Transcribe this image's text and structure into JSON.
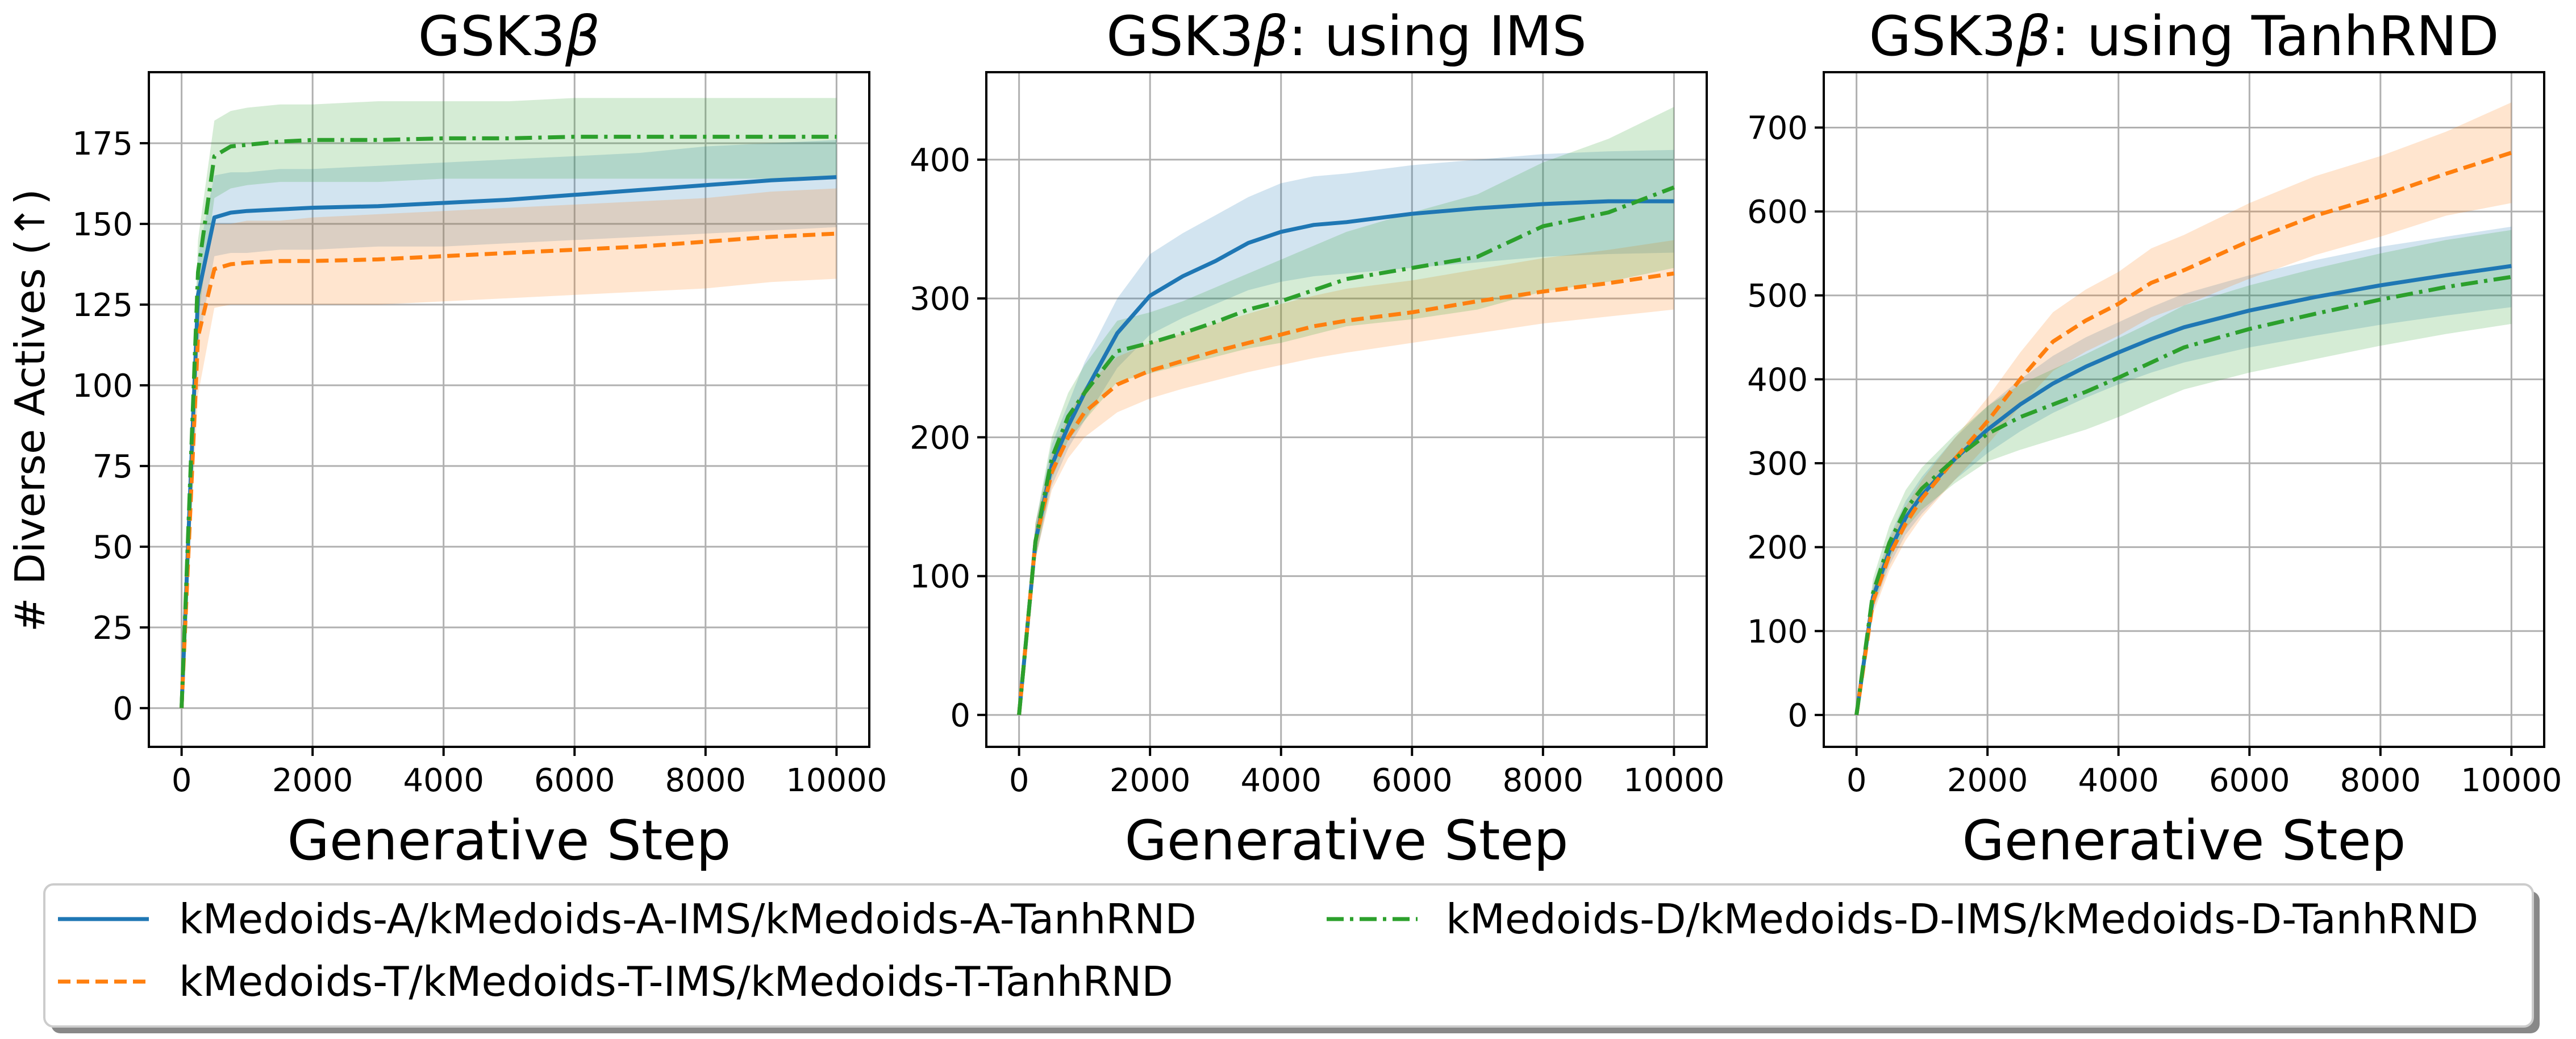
{
  "figure": {
    "ylabel": "# Diverse Actives (↑)",
    "colors": {
      "A": "#1f77b4",
      "T": "#ff7f0e",
      "D": "#2ca02c"
    },
    "legend": {
      "A": "kMedoids-A/kMedoids-A-IMS/kMedoids-A-TanhRND",
      "T": "kMedoids-T/kMedoids-T-IMS/kMedoids-T-TanhRND",
      "D": "kMedoids-D/kMedoids-D-IMS/kMedoids-D-TanhRND"
    }
  },
  "chart_data": [
    {
      "type": "line",
      "title_main": "GSK3",
      "title_greek": "β",
      "title_suffix": "",
      "xlabel": "Generative Step",
      "xlim": [
        -500,
        10500
      ],
      "ylim": [
        -12,
        197
      ],
      "xticks": [
        0,
        2000,
        4000,
        6000,
        8000,
        10000
      ],
      "yticks": [
        0,
        25,
        50,
        75,
        100,
        125,
        150,
        175
      ],
      "x": [
        0,
        250,
        500,
        750,
        1000,
        1500,
        2000,
        3000,
        4000,
        5000,
        6000,
        7000,
        8000,
        9000,
        10000
      ],
      "series": [
        {
          "key": "A",
          "name": "kMedoids-A/kMedoids-A-IMS/kMedoids-A-TanhRND",
          "values": [
            0,
            128,
            152,
            153.5,
            154,
            154.5,
            155,
            155.5,
            156.5,
            157.5,
            159,
            160.5,
            162,
            163.5,
            164.5
          ],
          "lower": [
            0,
            112,
            140,
            141,
            141,
            142,
            142,
            143,
            143,
            144,
            145,
            146,
            147,
            148,
            149
          ],
          "upper": [
            0,
            140,
            165,
            166,
            166,
            167,
            167,
            168,
            169,
            170,
            171,
            172,
            174,
            175,
            176
          ]
        },
        {
          "key": "T",
          "name": "kMedoids-T/kMedoids-T-IMS/kMedoids-T-TanhRND",
          "values": [
            0,
            115,
            136,
            137.5,
            138,
            138.5,
            138.5,
            139,
            140,
            141,
            142,
            143,
            144.5,
            146,
            147
          ],
          "lower": [
            0,
            97,
            124,
            125,
            125,
            125,
            125,
            125,
            126,
            127,
            128,
            129,
            130,
            132,
            133
          ],
          "upper": [
            0,
            130,
            150,
            150,
            151,
            151,
            152,
            153,
            154,
            155,
            156,
            157,
            158,
            160,
            161
          ]
        },
        {
          "key": "D",
          "name": "kMedoids-D/kMedoids-D-IMS/kMedoids-D-TanhRND",
          "values": [
            0,
            135,
            171,
            174,
            174.5,
            175.5,
            176,
            176,
            176.5,
            176.5,
            177,
            177,
            177,
            177,
            177
          ],
          "lower": [
            0,
            120,
            158,
            161,
            162,
            163,
            163,
            163,
            164,
            164,
            164,
            164,
            164,
            164,
            165
          ],
          "upper": [
            0,
            145,
            182,
            185,
            186,
            187,
            187,
            188,
            188,
            188,
            189,
            189,
            189,
            189,
            189
          ]
        }
      ]
    },
    {
      "type": "line",
      "title_main": "GSK3",
      "title_greek": "β",
      "title_suffix": ": using IMS",
      "xlabel": "Generative Step",
      "xlim": [
        -500,
        10500
      ],
      "ylim": [
        -23,
        463
      ],
      "xticks": [
        0,
        2000,
        4000,
        6000,
        8000,
        10000
      ],
      "yticks": [
        0,
        100,
        200,
        300,
        400
      ],
      "x": [
        0,
        250,
        500,
        750,
        1000,
        1500,
        2000,
        2500,
        3000,
        3500,
        4000,
        4500,
        5000,
        6000,
        7000,
        8000,
        9000,
        10000
      ],
      "series": [
        {
          "key": "A",
          "name": "kMedoids-A/kMedoids-A-IMS/kMedoids-A-TanhRND",
          "values": [
            0,
            125,
            180,
            208,
            232,
            275,
            302,
            316,
            327,
            340,
            348,
            353,
            355,
            361,
            365,
            368,
            370,
            370
          ],
          "lower": [
            0,
            112,
            165,
            192,
            212,
            250,
            274,
            286,
            296,
            306,
            312,
            316,
            318,
            322,
            326,
            330,
            332,
            333
          ],
          "upper": [
            0,
            138,
            195,
            224,
            254,
            300,
            332,
            347,
            360,
            373,
            383,
            388,
            390,
            396,
            400,
            404,
            406,
            407
          ]
        },
        {
          "key": "T",
          "name": "kMedoids-T/kMedoids-T-IMS/kMedoids-T-TanhRND",
          "values": [
            0,
            125,
            175,
            200,
            218,
            238,
            248,
            255,
            262,
            268,
            274,
            280,
            284,
            290,
            298,
            305,
            311,
            318
          ],
          "lower": [
            0,
            112,
            162,
            185,
            200,
            218,
            228,
            235,
            241,
            247,
            252,
            257,
            261,
            268,
            275,
            282,
            287,
            292
          ],
          "upper": [
            0,
            138,
            188,
            215,
            236,
            258,
            268,
            275,
            282,
            289,
            296,
            302,
            307,
            313,
            321,
            329,
            335,
            342
          ]
        },
        {
          "key": "D",
          "name": "kMedoids-D/kMedoids-D-IMS/kMedoids-D-TanhRND",
          "values": [
            0,
            125,
            185,
            215,
            232,
            262,
            268,
            275,
            283,
            292,
            298,
            306,
            314,
            322,
            330,
            352,
            362,
            380
          ],
          "lower": [
            0,
            112,
            170,
            198,
            212,
            240,
            246,
            252,
            258,
            264,
            268,
            274,
            280,
            285,
            292,
            305,
            312,
            322
          ],
          "upper": [
            0,
            138,
            200,
            232,
            252,
            284,
            290,
            298,
            308,
            318,
            328,
            338,
            348,
            362,
            375,
            398,
            415,
            438
          ]
        }
      ]
    },
    {
      "type": "line",
      "title_main": "GSK3",
      "title_greek": "β",
      "title_suffix": ": using TanhRND",
      "xlabel": "Generative Step",
      "xlim": [
        -500,
        10500
      ],
      "ylim": [
        -38,
        766
      ],
      "xticks": [
        0,
        2000,
        4000,
        6000,
        8000,
        10000
      ],
      "yticks": [
        0,
        100,
        200,
        300,
        400,
        500,
        600,
        700
      ],
      "x": [
        0,
        250,
        500,
        750,
        1000,
        1500,
        2000,
        2500,
        3000,
        3500,
        4000,
        4500,
        5000,
        6000,
        7000,
        8000,
        9000,
        10000
      ],
      "series": [
        {
          "key": "A",
          "name": "kMedoids-A/kMedoids-A-IMS/kMedoids-A-TanhRND",
          "values": [
            0,
            140,
            195,
            235,
            262,
            305,
            340,
            370,
            395,
            415,
            432,
            448,
            462,
            482,
            498,
            512,
            524,
            535
          ],
          "lower": [
            0,
            125,
            178,
            215,
            240,
            280,
            312,
            338,
            360,
            378,
            394,
            408,
            420,
            438,
            452,
            465,
            476,
            486
          ],
          "upper": [
            0,
            155,
            212,
            255,
            284,
            330,
            368,
            400,
            428,
            450,
            468,
            486,
            502,
            524,
            542,
            558,
            570,
            582
          ]
        },
        {
          "key": "T",
          "name": "kMedoids-T/kMedoids-T-IMS/kMedoids-T-TanhRND",
          "values": [
            0,
            135,
            190,
            228,
            258,
            305,
            350,
            400,
            445,
            470,
            490,
            515,
            530,
            565,
            595,
            618,
            645,
            670
          ],
          "lower": [
            0,
            120,
            172,
            208,
            236,
            280,
            322,
            368,
            410,
            433,
            452,
            474,
            488,
            520,
            548,
            570,
            595,
            610
          ],
          "upper": [
            0,
            150,
            208,
            248,
            280,
            330,
            378,
            432,
            480,
            507,
            528,
            556,
            572,
            610,
            642,
            666,
            695,
            730
          ]
        },
        {
          "key": "D",
          "name": "kMedoids-D/kMedoids-D-IMS/kMedoids-D-TanhRND",
          "values": [
            0,
            145,
            205,
            245,
            270,
            305,
            335,
            355,
            370,
            385,
            402,
            420,
            438,
            460,
            478,
            495,
            510,
            522
          ],
          "lower": [
            0,
            128,
            185,
            222,
            245,
            276,
            302,
            316,
            328,
            340,
            355,
            372,
            388,
            408,
            424,
            440,
            454,
            466
          ],
          "upper": [
            0,
            162,
            225,
            268,
            295,
            334,
            368,
            394,
            412,
            430,
            449,
            468,
            488,
            512,
            532,
            550,
            566,
            578
          ]
        }
      ]
    }
  ]
}
